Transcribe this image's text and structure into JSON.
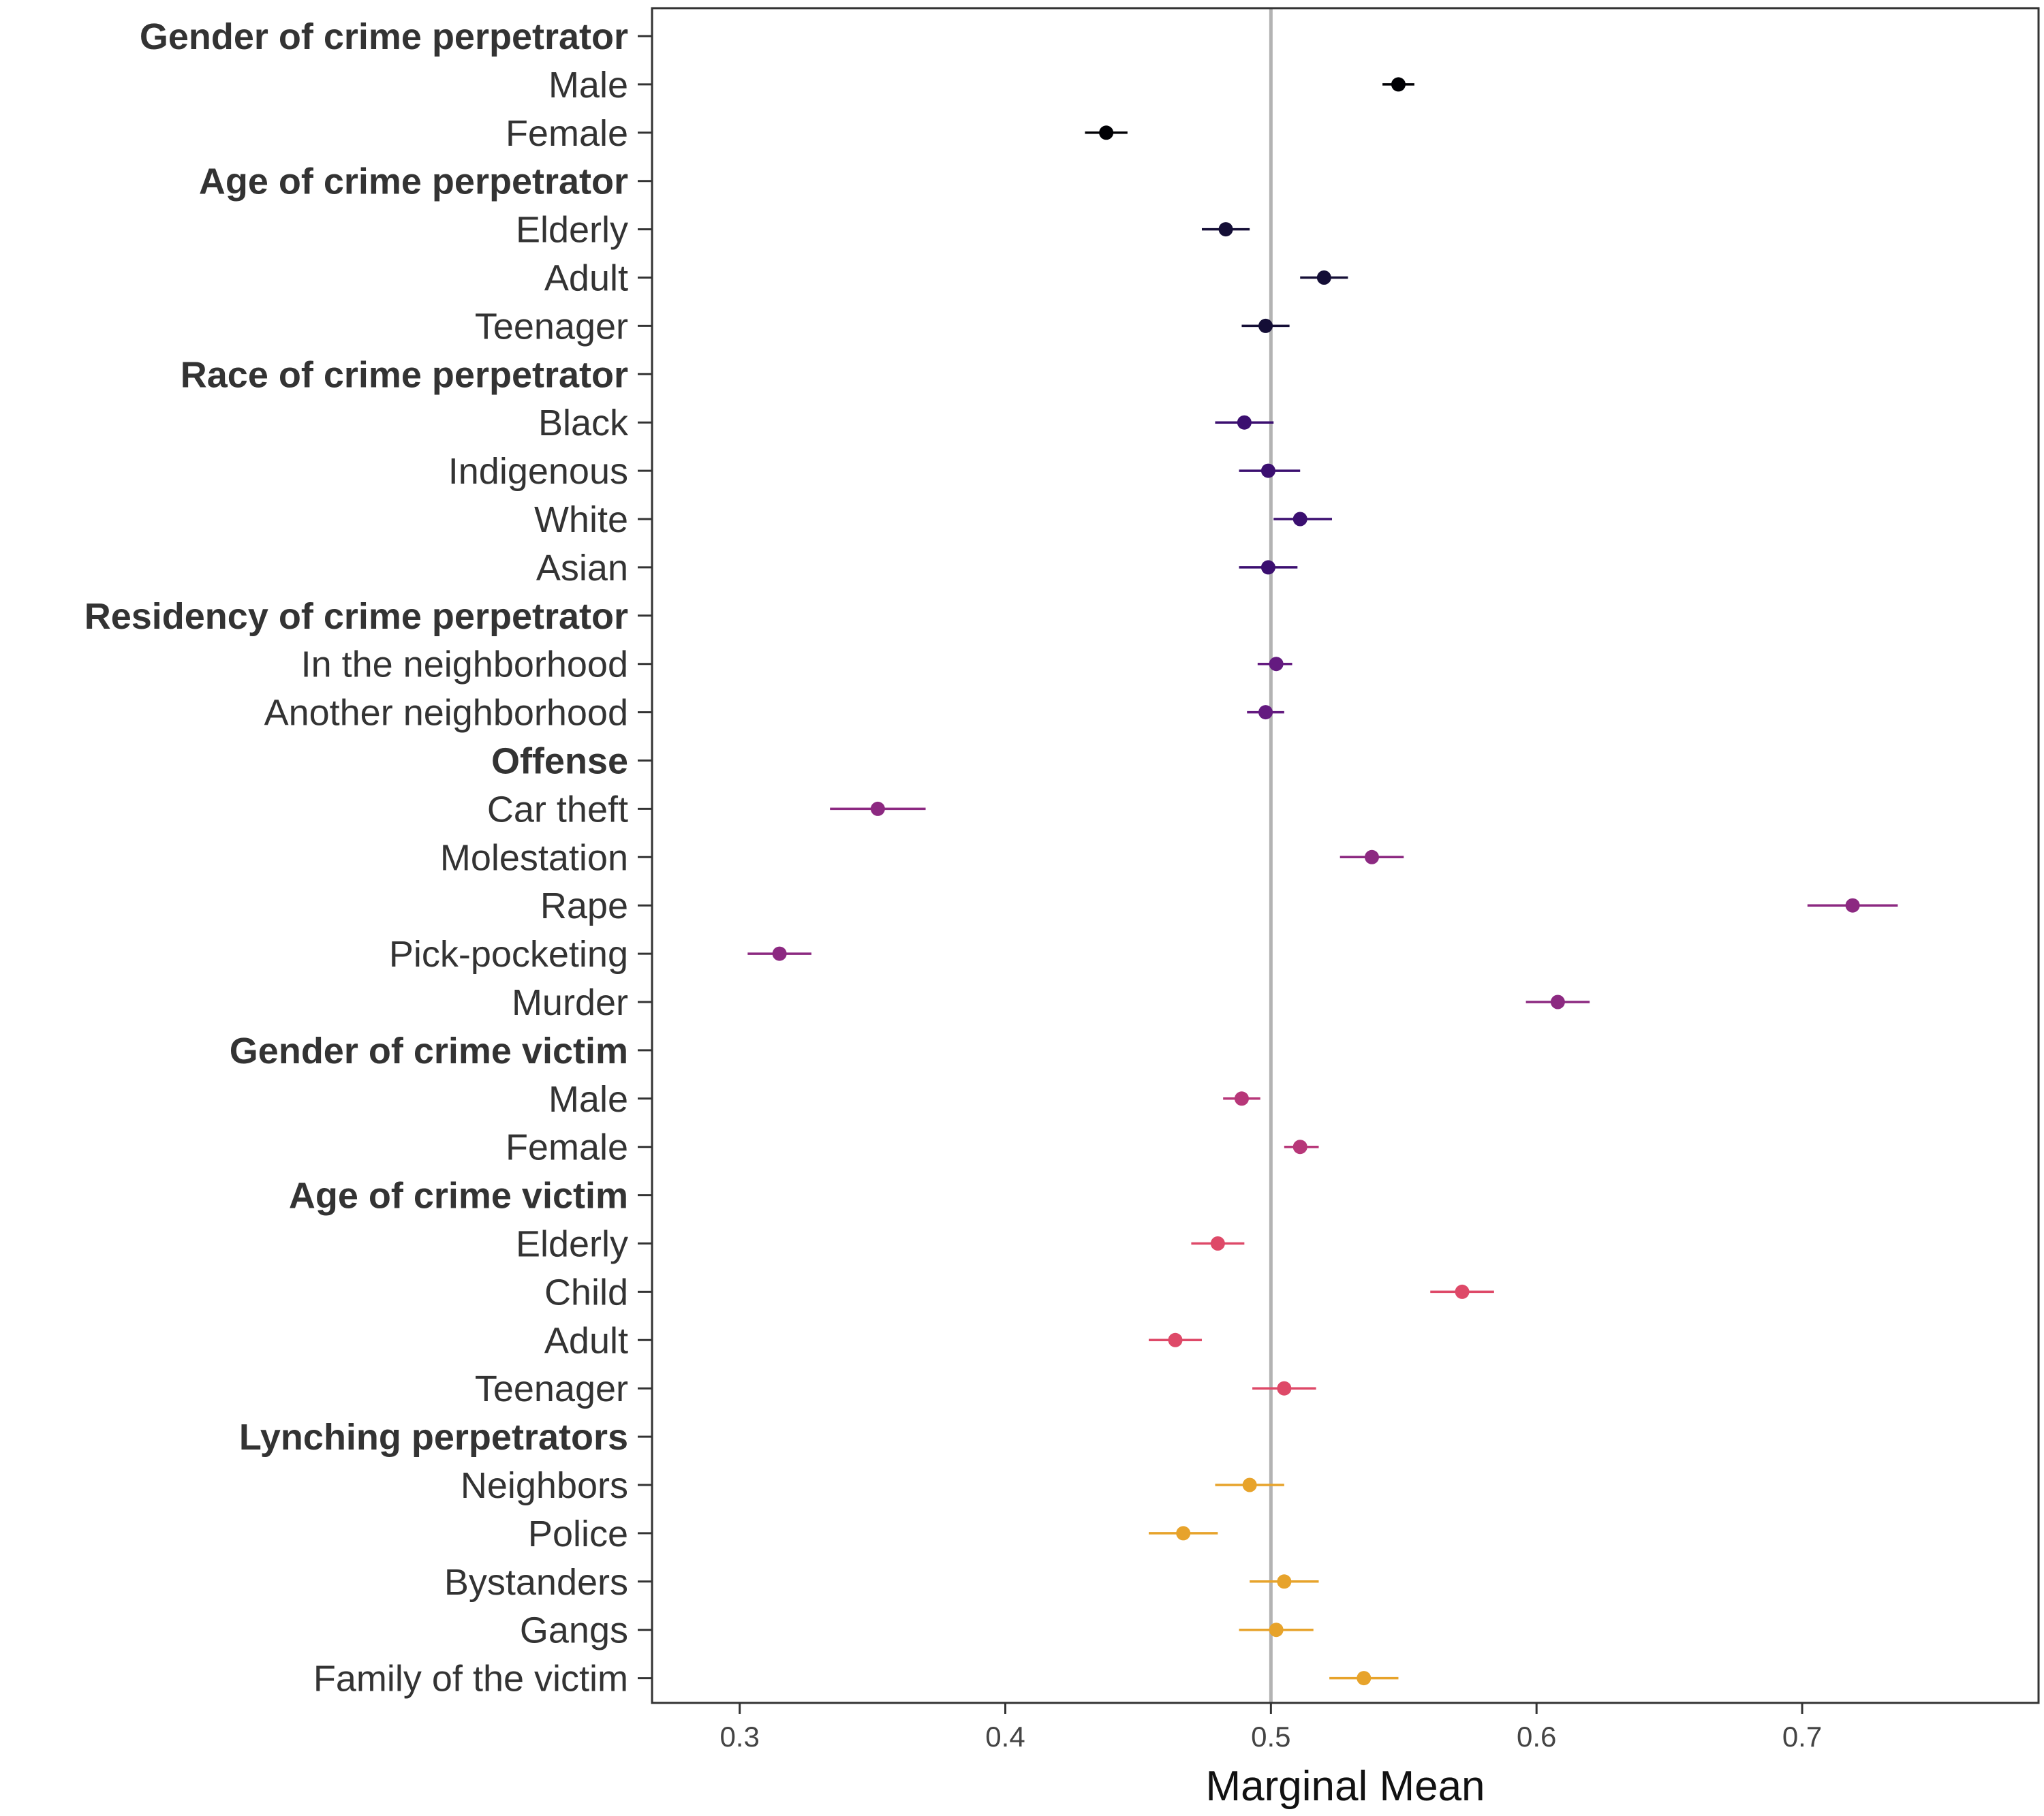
{
  "chart_data": {
    "type": "scatter",
    "title": "",
    "xlabel": "Marginal Mean",
    "ylabel": "",
    "xlim": [
      0.267,
      0.789
    ],
    "xticks": [
      0.3,
      0.4,
      0.5,
      0.6,
      0.7
    ],
    "xtick_labels": [
      "0.3",
      "0.4",
      "0.5",
      "0.6",
      "0.7"
    ],
    "reference_line": 0.5,
    "grid": false,
    "legend": "none",
    "rows": [
      {
        "label": "Gender of crime perpetrator",
        "header": true
      },
      {
        "label": "Male",
        "value": 0.548,
        "lo": 0.542,
        "hi": 0.554,
        "color": "#000004"
      },
      {
        "label": "Female",
        "value": 0.438,
        "lo": 0.43,
        "hi": 0.446,
        "color": "#000004"
      },
      {
        "label": "Age of crime perpetrator",
        "header": true
      },
      {
        "label": "Elderly",
        "value": 0.483,
        "lo": 0.474,
        "hi": 0.492,
        "color": "#140e36"
      },
      {
        "label": "Adult",
        "value": 0.52,
        "lo": 0.511,
        "hi": 0.529,
        "color": "#140e36"
      },
      {
        "label": "Teenager",
        "value": 0.498,
        "lo": 0.489,
        "hi": 0.507,
        "color": "#140e36"
      },
      {
        "label": "Race of crime perpetrator",
        "header": true
      },
      {
        "label": "Black",
        "value": 0.49,
        "lo": 0.479,
        "hi": 0.501,
        "color": "#3b0f70"
      },
      {
        "label": "Indigenous",
        "value": 0.499,
        "lo": 0.488,
        "hi": 0.511,
        "color": "#3b0f70"
      },
      {
        "label": "White",
        "value": 0.511,
        "lo": 0.501,
        "hi": 0.523,
        "color": "#3b0f70"
      },
      {
        "label": "Asian",
        "value": 0.499,
        "lo": 0.488,
        "hi": 0.51,
        "color": "#3b0f70"
      },
      {
        "label": "Residency of crime perpetrator",
        "header": true
      },
      {
        "label": "In the neighborhood",
        "value": 0.502,
        "lo": 0.495,
        "hi": 0.508,
        "color": "#641a80"
      },
      {
        "label": "Another neighborhood",
        "value": 0.498,
        "lo": 0.491,
        "hi": 0.505,
        "color": "#641a80"
      },
      {
        "label": "Offense",
        "header": true
      },
      {
        "label": "Car theft",
        "value": 0.352,
        "lo": 0.334,
        "hi": 0.37,
        "color": "#8c2981"
      },
      {
        "label": "Molestation",
        "value": 0.538,
        "lo": 0.526,
        "hi": 0.55,
        "color": "#8c2981"
      },
      {
        "label": "Rape",
        "value": 0.719,
        "lo": 0.702,
        "hi": 0.736,
        "color": "#8c2981"
      },
      {
        "label": "Pick-pocketing",
        "value": 0.315,
        "lo": 0.303,
        "hi": 0.327,
        "color": "#8c2981"
      },
      {
        "label": "Murder",
        "value": 0.608,
        "lo": 0.596,
        "hi": 0.62,
        "color": "#8c2981"
      },
      {
        "label": "Gender of crime victim",
        "header": true
      },
      {
        "label": "Male",
        "value": 0.489,
        "lo": 0.482,
        "hi": 0.496,
        "color": "#b73779"
      },
      {
        "label": "Female",
        "value": 0.511,
        "lo": 0.505,
        "hi": 0.518,
        "color": "#b73779"
      },
      {
        "label": "Age of crime victim",
        "header": true
      },
      {
        "label": "Elderly",
        "value": 0.48,
        "lo": 0.47,
        "hi": 0.49,
        "color": "#de4968"
      },
      {
        "label": "Child",
        "value": 0.572,
        "lo": 0.56,
        "hi": 0.584,
        "color": "#de4968"
      },
      {
        "label": "Adult",
        "value": 0.464,
        "lo": 0.454,
        "hi": 0.474,
        "color": "#de4968"
      },
      {
        "label": "Teenager",
        "value": 0.505,
        "lo": 0.493,
        "hi": 0.517,
        "color": "#de4968"
      },
      {
        "label": "Lynching perpetrators",
        "header": true
      },
      {
        "label": "Neighbors",
        "value": 0.492,
        "lo": 0.479,
        "hi": 0.505,
        "color": "#e7a32b"
      },
      {
        "label": "Police",
        "value": 0.467,
        "lo": 0.454,
        "hi": 0.48,
        "color": "#e7a32b"
      },
      {
        "label": "Bystanders",
        "value": 0.505,
        "lo": 0.492,
        "hi": 0.518,
        "color": "#e7a32b"
      },
      {
        "label": "Gangs",
        "value": 0.502,
        "lo": 0.488,
        "hi": 0.516,
        "color": "#e7a32b"
      },
      {
        "label": "Family of the victim",
        "value": 0.535,
        "lo": 0.522,
        "hi": 0.548,
        "color": "#e7a32b"
      }
    ]
  }
}
